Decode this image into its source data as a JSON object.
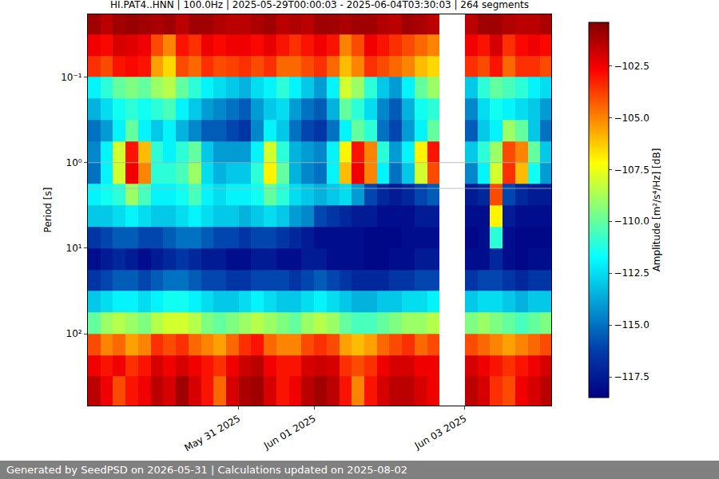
{
  "chart_data": {
    "type": "heatmap",
    "title": "HI.PAT4..HNN | 100.0Hz | 2025-05-29T00:00:03 - 2025-06-04T03:30:03 | 264 segments",
    "ylabel": "Period [s]",
    "colorbar_label": "Amplitude [m²/s⁴/Hz] [dB]",
    "footer": "Generated by SeedPSD on 2026-05-31 | Calculations updated on 2025-08-02",
    "log": "y",
    "grid": "y",
    "xlim": [
      "2025-05-29 00:00:03",
      "2025-06-04 03:30:03"
    ],
    "xticks": [
      {
        "value": "2025-05-31 00:00",
        "label": "May 31 2025"
      },
      {
        "value": "2025-06-01 00:00",
        "label": "Jun 01 2025"
      },
      {
        "value": "2025-06-03 00:00",
        "label": "Jun 03 2025"
      }
    ],
    "ylim": [
      690,
      0.0185
    ],
    "yticks": [
      {
        "value": 0.1,
        "label": "10⁻¹"
      },
      {
        "value": 1,
        "label": "10⁰"
      },
      {
        "value": 10,
        "label": "10¹"
      },
      {
        "value": 100,
        "label": "10²"
      }
    ],
    "zlim": [
      -118.5,
      -100.4
    ],
    "zticks": [
      {
        "value": -117.5,
        "label": "−117.5"
      },
      {
        "value": -115.0,
        "label": "−115.0"
      },
      {
        "value": -112.5,
        "label": "−112.5"
      },
      {
        "value": -110.0,
        "label": "−110.0"
      },
      {
        "value": -107.5,
        "label": "−107.5"
      },
      {
        "value": -105.0,
        "label": "−105.0"
      },
      {
        "value": -102.5,
        "label": "−102.5"
      }
    ],
    "x_edges": [
      "2025-05-29 00:00",
      "2025-05-29 04:00",
      "2025-05-29 08:00",
      "2025-05-29 12:00",
      "2025-05-29 16:00",
      "2025-05-29 20:00",
      "2025-05-30 00:00",
      "2025-05-30 04:00",
      "2025-05-30 08:00",
      "2025-05-30 12:00",
      "2025-05-30 16:00",
      "2025-05-30 20:00",
      "2025-05-31 00:00",
      "2025-05-31 04:00",
      "2025-05-31 08:00",
      "2025-05-31 12:00",
      "2025-05-31 16:00",
      "2025-05-31 20:00",
      "2025-06-01 00:00",
      "2025-06-01 04:00",
      "2025-06-01 08:00",
      "2025-06-01 12:00",
      "2025-06-01 16:00",
      "2025-06-01 20:00",
      "2025-06-02 00:00",
      "2025-06-02 04:00",
      "2025-06-02 08:00",
      "2025-06-02 12:00",
      "2025-06-02 16:00",
      "2025-06-02 20:00",
      "2025-06-03 00:00",
      "2025-06-03 04:00",
      "2025-06-03 08:00",
      "2025-06-03 12:00",
      "2025-06-03 16:00",
      "2025-06-03 20:00",
      "2025-06-04 00:00",
      "2025-06-04 04:00"
    ],
    "y_edges": [
      0.0178,
      0.0316,
      0.0562,
      0.1,
      0.178,
      0.316,
      0.562,
      1,
      1.78,
      3.16,
      5.62,
      10,
      17.8,
      31.6,
      56.2,
      100,
      178,
      316,
      708
    ],
    "z": [
      [
        -101,
        -101.5,
        -101,
        -100.8,
        -101,
        -101.2,
        -101,
        -101.5,
        -101,
        -101,
        -101.3,
        -101.5,
        -101.5,
        -101.2,
        -101,
        -101.5,
        -101.3,
        -101.5,
        -101,
        -101,
        -101.2,
        -101,
        -101,
        -101.3,
        -101.5,
        -101,
        -101.2,
        -101.5,
        null,
        null,
        -101.5,
        -101,
        -101,
        -101.3,
        -101.5,
        -101.5,
        -101.2
      ],
      [
        -102.5,
        -102.8,
        -102,
        -102.2,
        -102.5,
        -104,
        -105,
        -103,
        -103.5,
        -102.5,
        -102.8,
        -102.5,
        -102.5,
        -102.8,
        -102.3,
        -103,
        -103.5,
        -103,
        -102.5,
        -103,
        -105,
        -104,
        -102.5,
        -103,
        -103.5,
        -104,
        -104.5,
        -105,
        null,
        null,
        -102.5,
        -103,
        -102,
        -103.5,
        -102.8,
        -102.5,
        -102.8
      ],
      [
        -103.5,
        -104,
        -103,
        -102.8,
        -103,
        -105.5,
        -106.5,
        -104,
        -104.5,
        -103.5,
        -104,
        -103.8,
        -103.5,
        -104,
        -103.5,
        -104.5,
        -104.5,
        -104,
        -103.5,
        -104.5,
        -106,
        -105,
        -103.5,
        -104,
        -104.5,
        -105,
        -106,
        -106.5,
        null,
        null,
        -103.5,
        -104,
        -103,
        -104.5,
        -103.5,
        -103.5,
        -104
      ],
      [
        -112,
        -111,
        -110,
        -109.5,
        -110,
        -109,
        -108.5,
        -110,
        -111,
        -112,
        -112.5,
        -113,
        -113.5,
        -112.5,
        -112,
        -111,
        -112,
        -113,
        -114,
        -112,
        -108,
        -109,
        -111,
        -113,
        -114,
        -112,
        -110,
        -109,
        null,
        null,
        -113,
        -111,
        -110,
        -110.5,
        -111,
        -112,
        -112.5
      ],
      [
        -113.5,
        -112.5,
        -111.5,
        -111,
        -111.5,
        -111,
        -110.5,
        -112,
        -113,
        -114,
        -114.5,
        -115,
        -115.5,
        -114,
        -113,
        -112.5,
        -114,
        -115,
        -115.5,
        -113.5,
        -110,
        -111,
        -112.5,
        -114.5,
        -115.5,
        -113.5,
        -111.5,
        -111,
        null,
        null,
        -114.5,
        -112.5,
        -111.5,
        -112,
        -112.5,
        -113,
        -114
      ],
      [
        -115,
        -114,
        -112,
        -110,
        -112,
        -113,
        -112,
        -113.5,
        -114.5,
        -115.5,
        -115.5,
        -116,
        -116.5,
        -114.5,
        -112,
        -113,
        -115,
        -116,
        -116.5,
        -115,
        -112,
        -110,
        -111,
        -115,
        -116,
        -114,
        -112,
        -110,
        null,
        null,
        -115.5,
        -113,
        -112,
        -109,
        -110,
        -113,
        -115
      ],
      [
        -114.5,
        -112,
        -108,
        -103,
        -106,
        -111,
        -112,
        -111,
        -110,
        -113,
        -114,
        -114,
        -114,
        -112,
        -108,
        -111,
        -113.5,
        -114,
        -114.5,
        -112,
        -107,
        -103,
        -105,
        -111,
        -114,
        -112,
        -107,
        -103,
        null,
        null,
        -113,
        -111,
        -109,
        -104,
        -105,
        -110,
        -113
      ],
      [
        -115,
        -112,
        -108,
        -102.5,
        -105,
        -111,
        -111,
        -110.5,
        -109,
        -112.5,
        -113.5,
        -113,
        -113,
        -111,
        -107,
        -110,
        -113.5,
        -114.5,
        -115,
        -112,
        -106,
        -102.5,
        -105,
        -112,
        -115,
        -113,
        -108,
        -104,
        null,
        null,
        -114.5,
        -112,
        -108,
        -103.5,
        -106,
        -111.5,
        -114
      ],
      [
        -112,
        -111.5,
        -111,
        -109,
        -110.5,
        -112,
        -112,
        -111.5,
        -110.5,
        -112,
        -112.5,
        -112,
        -112,
        -111.5,
        -110,
        -111,
        -112.5,
        -113,
        -113.5,
        -113,
        -112.5,
        -114,
        -116,
        -117,
        -117.5,
        -117,
        -116,
        -115.5,
        null,
        null,
        -117.5,
        -117,
        -104,
        -116,
        -117,
        -117.5,
        -117.5
      ],
      [
        -113,
        -113,
        -112.5,
        -112,
        -112.5,
        -113,
        -113,
        -112.5,
        -112,
        -112.5,
        -113,
        -113,
        -113.5,
        -113,
        -112.5,
        -113,
        -114,
        -114.5,
        -116,
        -116.5,
        -117,
        -117.5,
        -117.5,
        -118,
        -118,
        -118,
        -117.5,
        -117.5,
        null,
        null,
        -118,
        -118,
        -107,
        -117.5,
        -118,
        -118,
        -118
      ],
      [
        -116.5,
        -116,
        -115.5,
        -115.5,
        -116,
        -116,
        -115.5,
        -115,
        -115,
        -115.5,
        -116,
        -116,
        -116.5,
        -116,
        -116,
        -116.5,
        -117,
        -117.5,
        -118,
        -118,
        -118,
        -118,
        -118.2,
        -118.2,
        -118.2,
        -118,
        -118,
        -118,
        null,
        null,
        -118.2,
        -118,
        -111,
        -118,
        -118.2,
        -118.2,
        -118.2
      ],
      [
        -118,
        -117.5,
        -117,
        -117.5,
        -118,
        -117.5,
        -117,
        -116.5,
        -117,
        -117.5,
        -117.5,
        -118,
        -118,
        -117.5,
        -117.5,
        -118,
        -118,
        -117.5,
        -117.5,
        -118,
        -118,
        -118,
        -118.2,
        -118.2,
        -118,
        -118,
        -117.5,
        -117.5,
        null,
        null,
        -118,
        -118,
        -117,
        -118,
        -118.2,
        -118,
        -118
      ],
      [
        -116.5,
        -116,
        -115.5,
        -115.5,
        -116,
        -115.5,
        -115,
        -115,
        -115.5,
        -116,
        -116,
        -116.5,
        -116.5,
        -116,
        -116,
        -116,
        -116.5,
        -116,
        -115.5,
        -116,
        -116.5,
        -117,
        -117,
        -117,
        -116.5,
        -116.5,
        -116,
        -116,
        null,
        null,
        -116.5,
        -116,
        -116,
        -116.5,
        -117,
        -116.5,
        -116.5
      ],
      [
        -113,
        -112.5,
        -112,
        -112,
        -112.5,
        -112,
        -111.5,
        -111.5,
        -112,
        -112.5,
        -113,
        -113,
        -112.5,
        -112,
        -112.5,
        -113,
        -113,
        -112.5,
        -112,
        -112.5,
        -113,
        -113.5,
        -113.5,
        -113,
        -113,
        -112.5,
        -112.5,
        -112,
        null,
        null,
        -113,
        -112.5,
        -112.5,
        -113,
        -113.5,
        -113,
        -113
      ],
      [
        -110,
        -109,
        -108.5,
        -109,
        -109.5,
        -108.5,
        -108,
        -108,
        -108.5,
        -109.5,
        -110,
        -109.5,
        -109,
        -108.5,
        -109,
        -109.5,
        -110,
        -109,
        -108.5,
        -109,
        -110,
        -110.5,
        -110.5,
        -110,
        -109.5,
        -109,
        -109,
        -108.5,
        null,
        null,
        -109.5,
        -109,
        -109.5,
        -110,
        -110.5,
        -110,
        -109.5
      ],
      [
        -104,
        -105,
        -104.5,
        -105.5,
        -105,
        -103.5,
        -104,
        -103.5,
        -104.5,
        -105,
        -105.5,
        -104.5,
        -103.5,
        -103,
        -104.5,
        -105,
        -105,
        -104,
        -103.5,
        -104,
        -105.5,
        -106,
        -105.5,
        -104.5,
        -104,
        -103.5,
        -104.5,
        -104,
        null,
        null,
        -104,
        -104.5,
        -105,
        -105.5,
        -105,
        -104.5,
        -104
      ],
      [
        -102.5,
        -103,
        -102.5,
        -103.5,
        -103,
        -102,
        -102.5,
        -102,
        -102.5,
        -103,
        -103.5,
        -102.5,
        -101.8,
        -101.5,
        -102.5,
        -103,
        -103,
        -102,
        -101.8,
        -102,
        -103.5,
        -104,
        -103.5,
        -102.5,
        -102,
        -102,
        -102.5,
        -102.5,
        null,
        null,
        -102,
        -102.5,
        -103,
        -103.5,
        -103,
        -102.5,
        -102
      ],
      [
        -101.5,
        -102.5,
        -104,
        -103,
        -102.5,
        -101.5,
        -102,
        -101,
        -102,
        -103,
        -104.5,
        -102,
        -101.2,
        -101,
        -102,
        -103,
        -102.5,
        -101.5,
        -101,
        -101.5,
        -103,
        -105,
        -103,
        -102,
        -101.5,
        -101.5,
        -102,
        -102.5,
        null,
        null,
        -101.5,
        -102,
        -103.5,
        -104,
        -102.5,
        -102,
        -101.5
      ]
    ]
  }
}
